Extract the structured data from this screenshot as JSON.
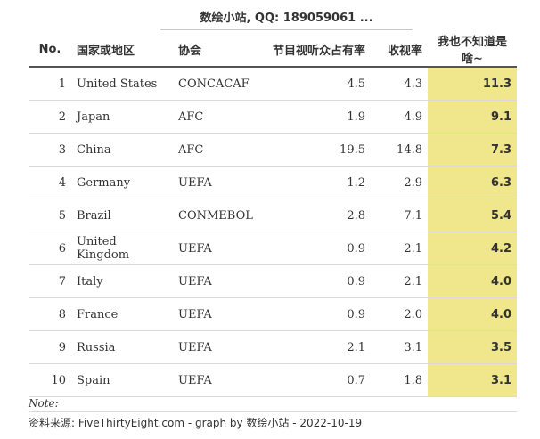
{
  "spanner": "数绘小站, QQ: 189059061 ...",
  "columns": {
    "no": "No.",
    "country": "国家或地区",
    "confederation": "协会",
    "share": "节目视听众占有率",
    "ratio": "收视率",
    "index": "我也不知道是啥~"
  },
  "rows": [
    {
      "no": "1",
      "country": "United States",
      "confederation": "CONCACAF",
      "share": "4.5",
      "ratio": "4.3",
      "index": "11.3"
    },
    {
      "no": "2",
      "country": "Japan",
      "confederation": "AFC",
      "share": "1.9",
      "ratio": "4.9",
      "index": "9.1"
    },
    {
      "no": "3",
      "country": "China",
      "confederation": "AFC",
      "share": "19.5",
      "ratio": "14.8",
      "index": "7.3"
    },
    {
      "no": "4",
      "country": "Germany",
      "confederation": "UEFA",
      "share": "1.2",
      "ratio": "2.9",
      "index": "6.3"
    },
    {
      "no": "5",
      "country": "Brazil",
      "confederation": "CONMEBOL",
      "share": "2.8",
      "ratio": "7.1",
      "index": "5.4"
    },
    {
      "no": "6",
      "country": "United Kingdom",
      "confederation": "UEFA",
      "share": "0.9",
      "ratio": "2.1",
      "index": "4.2"
    },
    {
      "no": "7",
      "country": "Italy",
      "confederation": "UEFA",
      "share": "0.9",
      "ratio": "2.1",
      "index": "4.0"
    },
    {
      "no": "8",
      "country": "France",
      "confederation": "UEFA",
      "share": "0.9",
      "ratio": "2.0",
      "index": "4.0"
    },
    {
      "no": "9",
      "country": "Russia",
      "confederation": "UEFA",
      "share": "2.1",
      "ratio": "3.1",
      "index": "3.5"
    },
    {
      "no": "10",
      "country": "Spain",
      "confederation": "UEFA",
      "share": "0.7",
      "ratio": "1.8",
      "index": "3.1"
    }
  ],
  "footer": {
    "note": "Note:",
    "source": "资料来源: FiveThirtyEight.com - graph by 数绘小站 - 2022-10-19"
  },
  "colors": {
    "highlight": "#f0e68c"
  }
}
